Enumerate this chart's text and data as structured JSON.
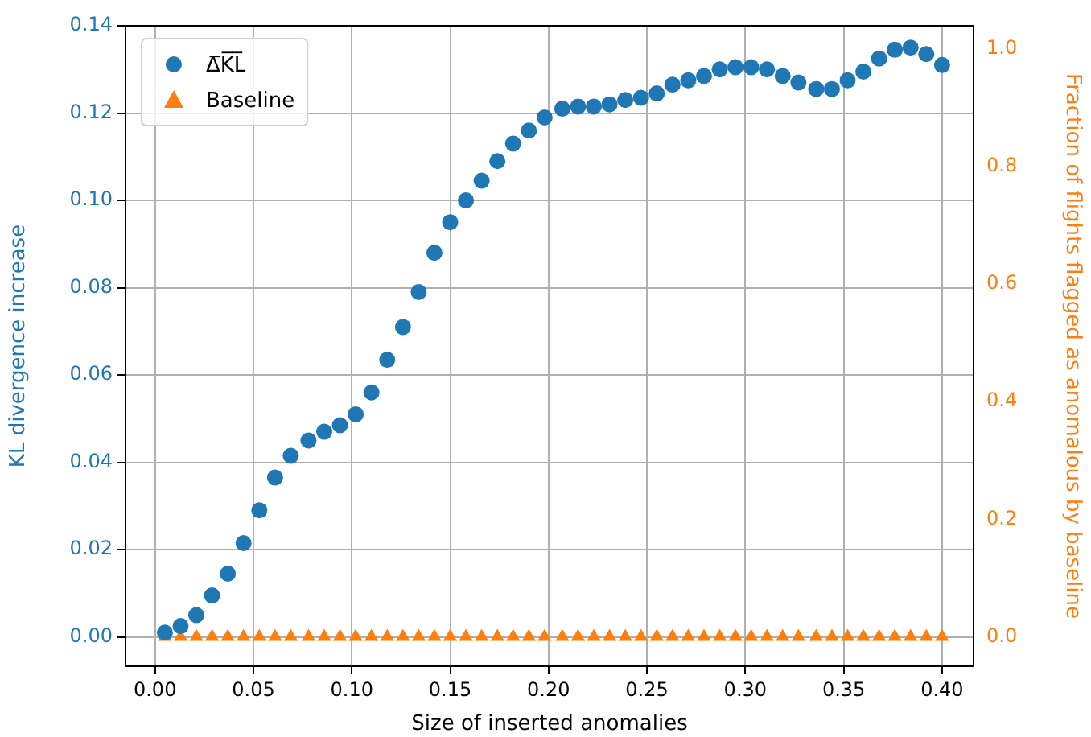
{
  "chart_data": {
    "type": "scatter",
    "xlabel": "Size of inserted anomalies",
    "ylabel": "KL divergence increase",
    "y2label": "Fraction of flights flagged as anomalous by baseline",
    "x": [
      0.005,
      0.013,
      0.021,
      0.029,
      0.037,
      0.045,
      0.053,
      0.061,
      0.069,
      0.078,
      0.086,
      0.094,
      0.102,
      0.11,
      0.118,
      0.126,
      0.134,
      0.142,
      0.15,
      0.158,
      0.166,
      0.174,
      0.182,
      0.19,
      0.198,
      0.207,
      0.215,
      0.223,
      0.231,
      0.239,
      0.247,
      0.255,
      0.263,
      0.271,
      0.279,
      0.287,
      0.295,
      0.303,
      0.311,
      0.319,
      0.327,
      0.336,
      0.344,
      0.352,
      0.36,
      0.368,
      0.376,
      0.384,
      0.392,
      0.4
    ],
    "series": [
      {
        "name": "Δ̅K̅L̅",
        "color": "#1f77b4",
        "marker": "circle",
        "values": [
          0.001,
          0.0025,
          0.005,
          0.0095,
          0.0145,
          0.0215,
          0.029,
          0.0365,
          0.0415,
          0.045,
          0.047,
          0.0485,
          0.051,
          0.056,
          0.0635,
          0.071,
          0.079,
          0.088,
          0.095,
          0.1,
          0.1045,
          0.109,
          0.113,
          0.116,
          0.119,
          0.121,
          0.1215,
          0.1215,
          0.122,
          0.123,
          0.1235,
          0.1245,
          0.1265,
          0.1275,
          0.1285,
          0.13,
          0.1305,
          0.1305,
          0.13,
          0.1285,
          0.127,
          0.1255,
          0.1255,
          0.1275,
          0.1295,
          0.1325,
          0.1345,
          0.135,
          0.1335,
          0.131
        ]
      },
      {
        "name": "Baseline",
        "color": "#ff7f0e",
        "marker": "triangle",
        "axis": "y2",
        "values": [
          0,
          0,
          0,
          0,
          0,
          0,
          0,
          0,
          0,
          0,
          0,
          0,
          0,
          0,
          0,
          0,
          0,
          0,
          0,
          0,
          0,
          0,
          0,
          0,
          0,
          0,
          0,
          0,
          0,
          0,
          0,
          0,
          0,
          0,
          0,
          0,
          0,
          0,
          0,
          0,
          0,
          0,
          0,
          0,
          0,
          0,
          0,
          0,
          0,
          0
        ]
      }
    ],
    "xlim": [
      -0.015,
      0.416
    ],
    "xticks": [
      {
        "value": 0,
        "label": "0.00"
      },
      {
        "value": 0.05,
        "label": "0.05"
      },
      {
        "value": 0.1,
        "label": "0.10"
      },
      {
        "value": 0.15,
        "label": "0.15"
      },
      {
        "value": 0.2,
        "label": "0.20"
      },
      {
        "value": 0.25,
        "label": "0.25"
      },
      {
        "value": 0.3,
        "label": "0.30"
      },
      {
        "value": 0.35,
        "label": "0.35"
      },
      {
        "value": 0.4,
        "label": "0.40"
      }
    ],
    "ylim": [
      -0.0067,
      0.14
    ],
    "yticks": [
      {
        "value": 0,
        "label": "0.00"
      },
      0.02,
      0.04,
      0.06,
      0.08,
      {
        "value": 0.1,
        "label": "0.10"
      },
      0.12,
      0.14
    ],
    "y2lim": [
      -0.05,
      1.039
    ],
    "y2ticks": [
      {
        "value": 0,
        "label": "0.0"
      },
      0.2,
      0.4,
      0.6,
      0.8,
      {
        "value": 1,
        "label": "1.0"
      }
    ],
    "grid": true,
    "legend": "top left"
  }
}
